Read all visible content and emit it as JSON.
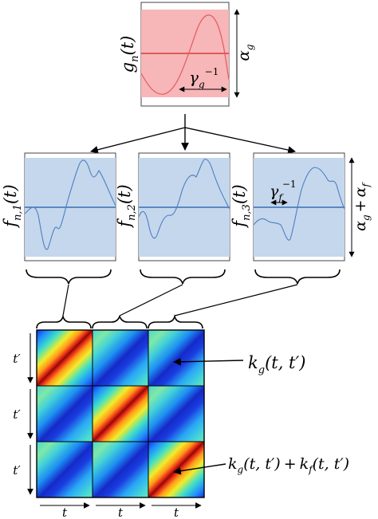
{
  "top_panel": {
    "ylabel_main": "g",
    "ylabel_sub": "n",
    "ylabel_arg": "(t)",
    "band_label_main": "α",
    "band_label_sub": "g",
    "scale_label_main": "γ",
    "scale_label_sub": "g",
    "scale_label_sup": "−1",
    "colors": {
      "band_fill": "#f7b6b8",
      "line": "#d83a3f"
    }
  },
  "middle_panels": [
    {
      "ylabel_main": "f",
      "ylabel_sub": "n,1",
      "ylabel_arg": "(t)"
    },
    {
      "ylabel_main": "f",
      "ylabel_sub": "n,2",
      "ylabel_arg": "(t)"
    },
    {
      "ylabel_main": "f",
      "ylabel_sub": "n,3",
      "ylabel_arg": "(t)"
    }
  ],
  "middle_common": {
    "scale_label_main": "γ",
    "scale_label_sub": "f",
    "scale_label_sup": "−1",
    "band_label_a_main": "α",
    "band_label_a_sub": "g",
    "band_label_plus": "+",
    "band_label_b_main": "α",
    "band_label_b_sub": "f",
    "colors": {
      "band_fill": "#c5d7ec",
      "line": "#3b6fb5"
    }
  },
  "kernel_matrix": {
    "row_labels": [
      "t′",
      "t′",
      "t′"
    ],
    "col_labels": [
      "t",
      "t",
      "t"
    ],
    "annotation_1": "k_g(t, t′)",
    "annotation_1_parts": {
      "k": "k",
      "sub": "g",
      "args": "(t, t′)"
    },
    "annotation_2_parts": {
      "k1": "k",
      "sub1": "g",
      "args1": "(t, t′)",
      "plus": "+",
      "k2": "k",
      "sub2": "f",
      "args2": "(t, t′)"
    }
  }
}
